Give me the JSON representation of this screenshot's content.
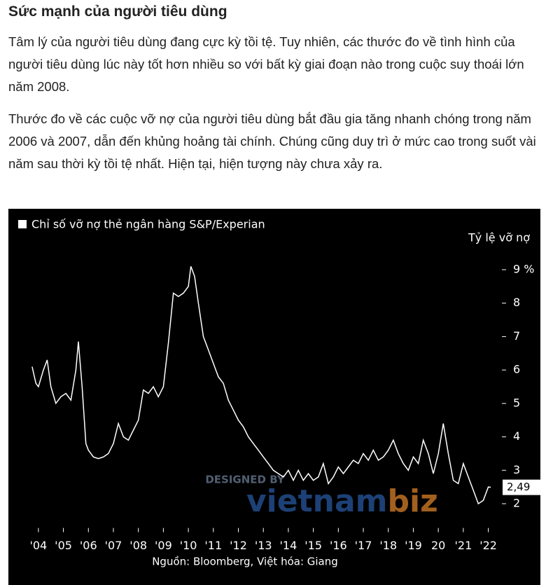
{
  "header": {
    "title": "Sức mạnh của người tiêu dùng"
  },
  "paragraphs": [
    "Tâm lý của người tiêu dùng đang cực kỳ tồi tệ. Tuy nhiên, các thước đo về tình hình của người tiêu dùng lúc này tốt hơn nhiều so với bất kỳ giai đoạn nào trong cuộc suy thoái lớn năm 2008.",
    "Thước đo về các cuộc vỡ nợ của người tiêu dùng bắt đầu gia tăng nhanh chóng trong năm 2006 và 2007, dẫn đến khủng hoảng tài chính. Chúng cũng duy trì ở mức cao trong suốt vài năm sau thời kỳ tồi tệ nhất. Hiện tại, hiện tượng này chưa xảy ra."
  ],
  "chart_data": {
    "type": "line",
    "y_axis_label": "Tỷ lệ vỡ nợ",
    "source": "Nguồn: Bloomberg, Việt hóa: Giang",
    "watermark": {
      "top": "DESIGNED BY",
      "brand_left": "vietnam",
      "brand_right": "biz"
    },
    "background": "#000000",
    "xlim": [
      2003.5,
      2022.6
    ],
    "ylim": [
      1.4,
      10.1
    ],
    "xticks": [
      {
        "value": 2004,
        "label": "'04"
      },
      {
        "value": 2005,
        "label": "'05"
      },
      {
        "value": 2006,
        "label": "'06"
      },
      {
        "value": 2007,
        "label": "'07"
      },
      {
        "value": 2008,
        "label": "'08"
      },
      {
        "value": 2009,
        "label": "'09"
      },
      {
        "value": 2010,
        "label": "'10"
      },
      {
        "value": 2011,
        "label": "'11"
      },
      {
        "value": 2012,
        "label": "'12"
      },
      {
        "value": 2013,
        "label": "'13"
      },
      {
        "value": 2014,
        "label": "'14"
      },
      {
        "value": 2015,
        "label": "'15"
      },
      {
        "value": 2016,
        "label": "'16"
      },
      {
        "value": 2017,
        "label": "'17"
      },
      {
        "value": 2018,
        "label": "'18"
      },
      {
        "value": 2019,
        "label": "'19"
      },
      {
        "value": 2020,
        "label": "20"
      },
      {
        "value": 2021,
        "label": "'21"
      },
      {
        "value": 2022,
        "label": "'22"
      }
    ],
    "yticks": [
      2,
      3,
      4,
      5,
      6,
      7,
      8,
      {
        "value": 9,
        "label": "9 %"
      }
    ],
    "x": [
      2003.75,
      2003.9,
      2004.0,
      2004.2,
      2004.35,
      2004.5,
      2004.7,
      2004.9,
      2005.1,
      2005.3,
      2005.5,
      2005.6,
      2005.75,
      2005.9,
      2006.0,
      2006.2,
      2006.4,
      2006.6,
      2006.8,
      2007.0,
      2007.2,
      2007.4,
      2007.6,
      2007.8,
      2008.0,
      2008.2,
      2008.4,
      2008.6,
      2008.8,
      2009.0,
      2009.2,
      2009.4,
      2009.6,
      2009.8,
      2010.0,
      2010.1,
      2010.25,
      2010.4,
      2010.6,
      2010.8,
      2011.0,
      2011.2,
      2011.4,
      2011.6,
      2011.8,
      2012.0,
      2012.2,
      2012.4,
      2012.6,
      2012.8,
      2013.0,
      2013.2,
      2013.4,
      2013.6,
      2013.8,
      2014.0,
      2014.2,
      2014.4,
      2014.6,
      2014.8,
      2015.0,
      2015.2,
      2015.4,
      2015.6,
      2015.8,
      2016.0,
      2016.2,
      2016.4,
      2016.6,
      2016.8,
      2017.0,
      2017.2,
      2017.4,
      2017.6,
      2017.8,
      2018.0,
      2018.2,
      2018.4,
      2018.6,
      2018.8,
      2019.0,
      2019.2,
      2019.4,
      2019.6,
      2019.8,
      2020.0,
      2020.2,
      2020.4,
      2020.6,
      2020.8,
      2021.0,
      2021.2,
      2021.4,
      2021.6,
      2021.8,
      2022.0,
      2022.1
    ],
    "series": [
      {
        "name": "Chỉ số vỡ nợ thẻ ngân hàng S&P/Experian",
        "color": "#ffffff",
        "values": [
          6.1,
          5.6,
          5.5,
          6.0,
          6.3,
          5.5,
          5.0,
          5.2,
          5.3,
          5.1,
          6.0,
          6.85,
          5.5,
          3.8,
          3.6,
          3.4,
          3.35,
          3.4,
          3.5,
          3.8,
          4.4,
          4.0,
          3.9,
          4.2,
          4.5,
          5.4,
          5.3,
          5.5,
          5.2,
          5.5,
          6.8,
          8.3,
          8.2,
          8.3,
          8.5,
          9.1,
          8.8,
          8.0,
          7.0,
          6.6,
          6.2,
          5.8,
          5.6,
          5.1,
          4.8,
          4.5,
          4.3,
          4.0,
          3.8,
          3.6,
          3.4,
          3.2,
          3.0,
          2.9,
          2.8,
          3.0,
          2.7,
          3.0,
          2.7,
          2.9,
          2.7,
          2.8,
          3.2,
          2.6,
          2.8,
          3.1,
          2.9,
          3.1,
          3.3,
          3.2,
          3.5,
          3.3,
          3.6,
          3.3,
          3.4,
          3.6,
          3.9,
          3.5,
          3.2,
          3.0,
          3.4,
          3.2,
          3.9,
          3.5,
          2.9,
          3.5,
          4.4,
          3.5,
          2.7,
          2.6,
          3.2,
          2.8,
          2.4,
          2.0,
          2.1,
          2.5,
          2.49
        ],
        "value_labels": [
          null,
          null,
          null,
          null,
          null,
          null,
          null,
          null,
          null,
          null,
          null,
          null,
          null,
          null,
          null,
          null,
          null,
          null,
          null,
          null,
          null,
          null,
          null,
          null,
          null,
          null,
          null,
          null,
          null,
          null,
          null,
          null,
          null,
          null,
          null,
          null,
          null,
          null,
          null,
          null,
          null,
          null,
          null,
          null,
          null,
          null,
          null,
          null,
          null,
          null,
          null,
          null,
          null,
          null,
          null,
          null,
          null,
          null,
          null,
          null,
          null,
          null,
          null,
          null,
          null,
          null,
          null,
          null,
          null,
          null,
          null,
          null,
          null,
          null,
          null,
          null,
          null,
          null,
          null,
          null,
          null,
          null,
          null,
          null,
          null,
          null,
          null,
          null,
          null,
          null,
          null,
          null,
          null,
          null,
          null,
          null,
          "2,49"
        ]
      }
    ]
  }
}
